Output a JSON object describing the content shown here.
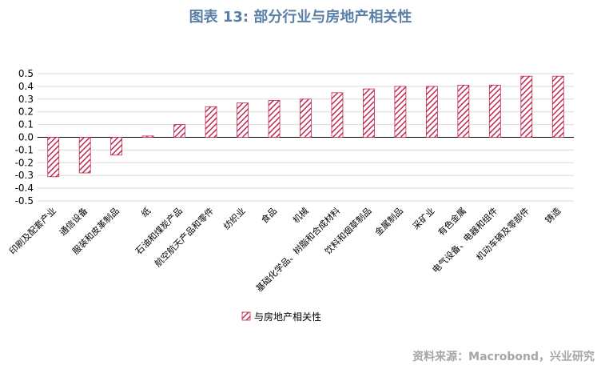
{
  "title": "图表 13: 部分行业与房地产相关性",
  "source": "资料来源：Macrobond，兴业研究",
  "colors": {
    "bar": "#c0284f",
    "title": "#5a7fa6",
    "grid": "#d9d9d9",
    "source": "#a6a6a6"
  },
  "chart_data": {
    "type": "bar",
    "categories": [
      "印刷及配套产业",
      "通信设备",
      "服装和皮革制品",
      "纸",
      "石油和煤炭产品",
      "航空航天产品和零件",
      "纺织业",
      "食品",
      "机械",
      "基础化学品、树脂和合成材料",
      "饮料和烟草制品",
      "金属制品",
      "采矿业",
      "有色金属",
      "电气设备、电器和组件",
      "机动车辆及零部件",
      "铸造"
    ],
    "series": [
      {
        "name": "与房地产相关性",
        "values": [
          -0.31,
          -0.28,
          -0.14,
          0.01,
          0.1,
          0.24,
          0.27,
          0.29,
          0.3,
          0.35,
          0.38,
          0.4,
          0.4,
          0.41,
          0.41,
          0.48,
          0.48
        ]
      }
    ],
    "ylim": [
      -0.5,
      0.5
    ],
    "yticks": [
      "0.5",
      "0.4",
      "0.3",
      "0.2",
      "0.1",
      "0.0",
      "-0.1",
      "-0.2",
      "-0.3",
      "-0.4",
      "-0.5"
    ],
    "xlabel": "",
    "ylabel": "",
    "grid": true,
    "legend": "bottom-center",
    "bar_pattern": "diagonal-hatch"
  }
}
